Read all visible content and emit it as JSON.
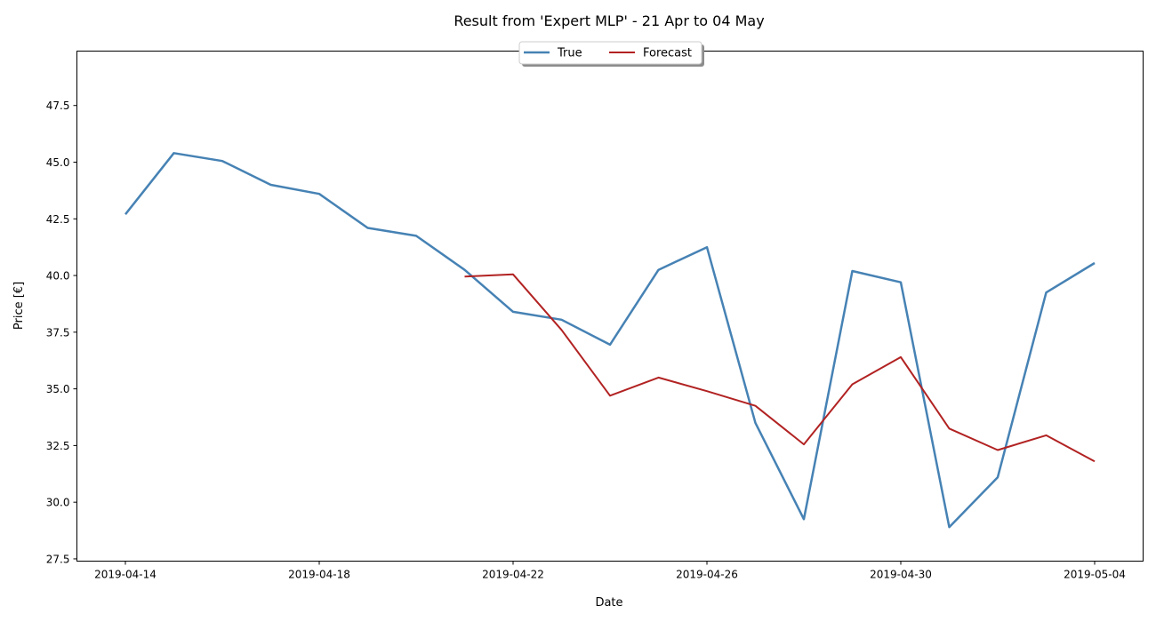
{
  "chart_data": {
    "type": "line",
    "title": "Result from 'Expert MLP' - 21 Apr to 04 May",
    "xlabel": "Date",
    "ylabel": "Price [€]",
    "x_ticks": [
      "2019-04-14",
      "2019-04-18",
      "2019-04-22",
      "2019-04-26",
      "2019-04-30",
      "2019-05-04"
    ],
    "xlim": [
      "2019-04-13",
      "2019-05-05"
    ],
    "y_ticks": [
      27.5,
      30.0,
      32.5,
      35.0,
      37.5,
      40.0,
      42.5,
      45.0,
      47.5
    ],
    "y_tick_labels": [
      "27.5",
      "30.0",
      "32.5",
      "35.0",
      "37.5",
      "40.0",
      "42.5",
      "45.0",
      "47.5"
    ],
    "ylim": [
      27.4,
      49.9
    ],
    "legend_position": "upper-center",
    "grid": false,
    "series": [
      {
        "name": "True",
        "color": "#4682b4",
        "points": [
          {
            "date": "2019-04-14",
            "value": 42.7
          },
          {
            "date": "2019-04-15",
            "value": 45.4
          },
          {
            "date": "2019-04-16",
            "value": 45.05
          },
          {
            "date": "2019-04-17",
            "value": 44.0
          },
          {
            "date": "2019-04-18",
            "value": 43.6
          },
          {
            "date": "2019-04-19",
            "value": 42.1
          },
          {
            "date": "2019-04-20",
            "value": 41.75
          },
          {
            "date": "2019-04-21",
            "value": 40.25
          },
          {
            "date": "2019-04-22",
            "value": 38.4
          },
          {
            "date": "2019-04-23",
            "value": 38.05
          },
          {
            "date": "2019-04-24",
            "value": 36.95
          },
          {
            "date": "2019-04-25",
            "value": 40.25
          },
          {
            "date": "2019-04-26",
            "value": 41.25
          },
          {
            "date": "2019-04-27",
            "value": 33.5
          },
          {
            "date": "2019-04-28",
            "value": 29.25
          },
          {
            "date": "2019-04-29",
            "value": 40.2
          },
          {
            "date": "2019-04-30",
            "value": 39.7
          },
          {
            "date": "2019-05-01",
            "value": 28.9
          },
          {
            "date": "2019-05-02",
            "value": 31.1
          },
          {
            "date": "2019-05-03",
            "value": 39.25
          },
          {
            "date": "2019-05-04",
            "value": 40.55
          }
        ]
      },
      {
        "name": "Forecast",
        "color": "#b22222",
        "points": [
          {
            "date": "2019-04-21",
            "value": 39.95
          },
          {
            "date": "2019-04-22",
            "value": 40.05
          },
          {
            "date": "2019-04-23",
            "value": 37.6
          },
          {
            "date": "2019-04-24",
            "value": 34.7
          },
          {
            "date": "2019-04-25",
            "value": 35.5
          },
          {
            "date": "2019-04-26",
            "value": 34.9
          },
          {
            "date": "2019-04-27",
            "value": 34.25
          },
          {
            "date": "2019-04-28",
            "value": 32.55
          },
          {
            "date": "2019-04-29",
            "value": 35.2
          },
          {
            "date": "2019-04-30",
            "value": 36.4
          },
          {
            "date": "2019-05-01",
            "value": 33.25
          },
          {
            "date": "2019-05-02",
            "value": 32.3
          },
          {
            "date": "2019-05-03",
            "value": 32.95
          },
          {
            "date": "2019-05-04",
            "value": 31.8
          }
        ]
      }
    ]
  }
}
